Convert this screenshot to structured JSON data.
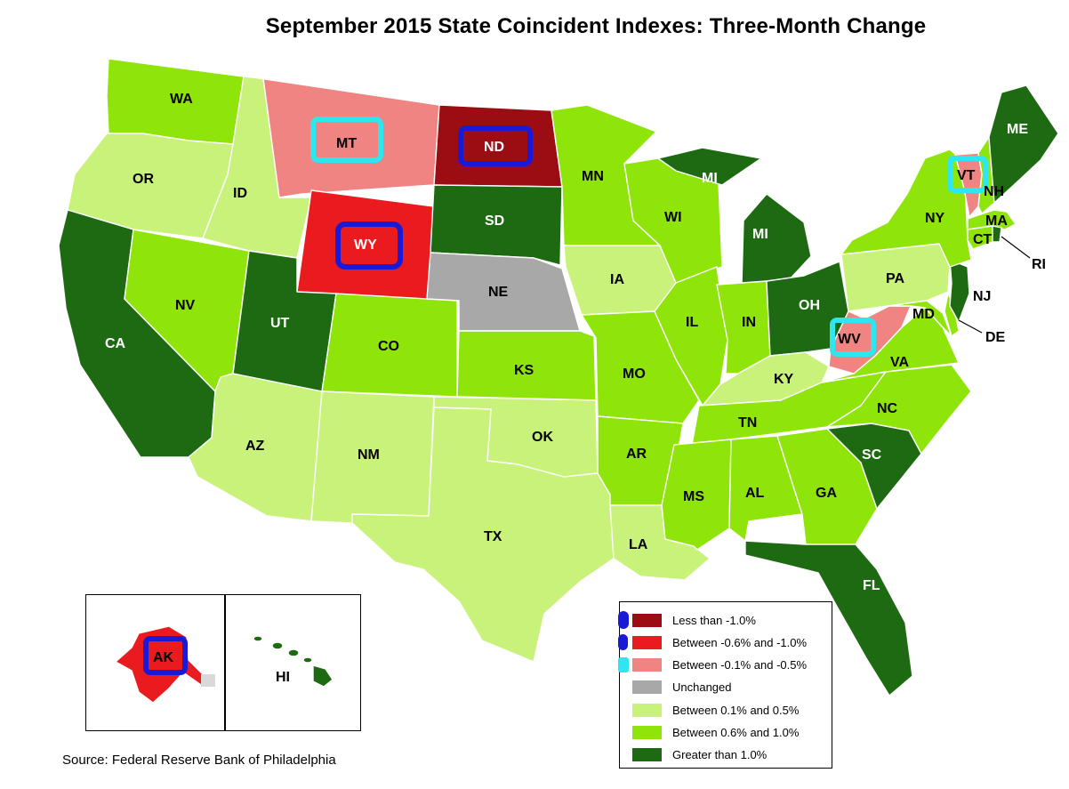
{
  "title": "September 2015 State Coincident Indexes: Three-Month Change",
  "source": "Source: Federal Reserve Bank of Philadelphia",
  "colors": {
    "lt_neg1": "#9b0d12",
    "neg06_neg1": "#ea1b1f",
    "neg01_neg05": "#f08482",
    "unchanged": "#a8a8a8",
    "p01_p05": "#c9f27b",
    "p06_p10": "#8fe40a",
    "gt1": "#1e6a12",
    "highlight_blue": "#1a1ad6",
    "highlight_cyan": "#2ee6f0"
  },
  "legend": [
    {
      "key": "lt_neg1",
      "label": "Less than -1.0%"
    },
    {
      "key": "neg06_neg1",
      "label": "Between -0.6% and -1.0%"
    },
    {
      "key": "neg01_neg05",
      "label": "Between -0.1% and -0.5%"
    },
    {
      "key": "unchanged",
      "label": "Unchanged"
    },
    {
      "key": "p01_p05",
      "label": "Between 0.1% and 0.5%"
    },
    {
      "key": "p06_p10",
      "label": "Between 0.6% and 1.0%"
    },
    {
      "key": "gt1",
      "label": "Greater than 1.0%"
    }
  ],
  "states": {
    "WA": {
      "label": "WA",
      "category": "p06_p10"
    },
    "OR": {
      "label": "OR",
      "category": "p01_p05"
    },
    "CA": {
      "label": "CA",
      "category": "gt1"
    },
    "NV": {
      "label": "NV",
      "category": "p06_p10"
    },
    "ID": {
      "label": "ID",
      "category": "p01_p05"
    },
    "MT": {
      "label": "MT",
      "category": "neg01_neg05"
    },
    "WY": {
      "label": "WY",
      "category": "neg06_neg1"
    },
    "UT": {
      "label": "UT",
      "category": "gt1"
    },
    "AZ": {
      "label": "AZ",
      "category": "p01_p05"
    },
    "CO": {
      "label": "CO",
      "category": "p06_p10"
    },
    "NM": {
      "label": "NM",
      "category": "p01_p05"
    },
    "ND": {
      "label": "ND",
      "category": "lt_neg1"
    },
    "SD": {
      "label": "SD",
      "category": "gt1"
    },
    "NE": {
      "label": "NE",
      "category": "unchanged"
    },
    "KS": {
      "label": "KS",
      "category": "p06_p10"
    },
    "OK": {
      "label": "OK",
      "category": "p01_p05"
    },
    "TX": {
      "label": "TX",
      "category": "p01_p05"
    },
    "MN": {
      "label": "MN",
      "category": "p06_p10"
    },
    "IA": {
      "label": "IA",
      "category": "p01_p05"
    },
    "MO": {
      "label": "MO",
      "category": "p06_p10"
    },
    "AR": {
      "label": "AR",
      "category": "p06_p10"
    },
    "LA": {
      "label": "LA",
      "category": "p01_p05"
    },
    "WI": {
      "label": "WI",
      "category": "p06_p10"
    },
    "IL": {
      "label": "IL",
      "category": "p06_p10"
    },
    "MI": {
      "label": "MI",
      "label_up": "MI",
      "category": "gt1"
    },
    "IN": {
      "label": "IN",
      "category": "p06_p10"
    },
    "OH": {
      "label": "OH",
      "category": "gt1"
    },
    "KY": {
      "label": "KY",
      "category": "p01_p05"
    },
    "TN": {
      "label": "TN",
      "category": "p06_p10"
    },
    "MS": {
      "label": "MS",
      "category": "p06_p10"
    },
    "AL": {
      "label": "AL",
      "category": "p06_p10"
    },
    "GA": {
      "label": "GA",
      "category": "p06_p10"
    },
    "FL": {
      "label": "FL",
      "category": "gt1"
    },
    "SC": {
      "label": "SC",
      "category": "gt1"
    },
    "NC": {
      "label": "NC",
      "category": "p06_p10"
    },
    "VA": {
      "label": "VA",
      "category": "p06_p10"
    },
    "WV": {
      "label": "WV",
      "category": "neg01_neg05"
    },
    "PA": {
      "label": "PA",
      "category": "p01_p05"
    },
    "NY": {
      "label": "NY",
      "category": "p06_p10"
    },
    "VT": {
      "label": "VT",
      "category": "neg01_neg05"
    },
    "NH": {
      "label": "NH",
      "category": "p06_p10"
    },
    "ME": {
      "label": "ME",
      "category": "gt1"
    },
    "MA": {
      "label": "MA",
      "category": "p06_p10"
    },
    "CT": {
      "label": "CT",
      "category": "p06_p10"
    },
    "RI": {
      "label": "RI",
      "category": "gt1"
    },
    "NJ": {
      "label": "NJ",
      "category": "gt1"
    },
    "DE": {
      "label": "DE",
      "category": "p06_p10"
    },
    "MD": {
      "label": "MD",
      "category": "p06_p10"
    },
    "AK": {
      "label": "AK",
      "category": "neg06_neg1"
    },
    "HI": {
      "label": "HI",
      "category": "gt1"
    }
  },
  "highlights": {
    "blue_circled": [
      "ND",
      "WY",
      "AK"
    ],
    "cyan_circled": [
      "MT",
      "VT",
      "WV"
    ]
  }
}
